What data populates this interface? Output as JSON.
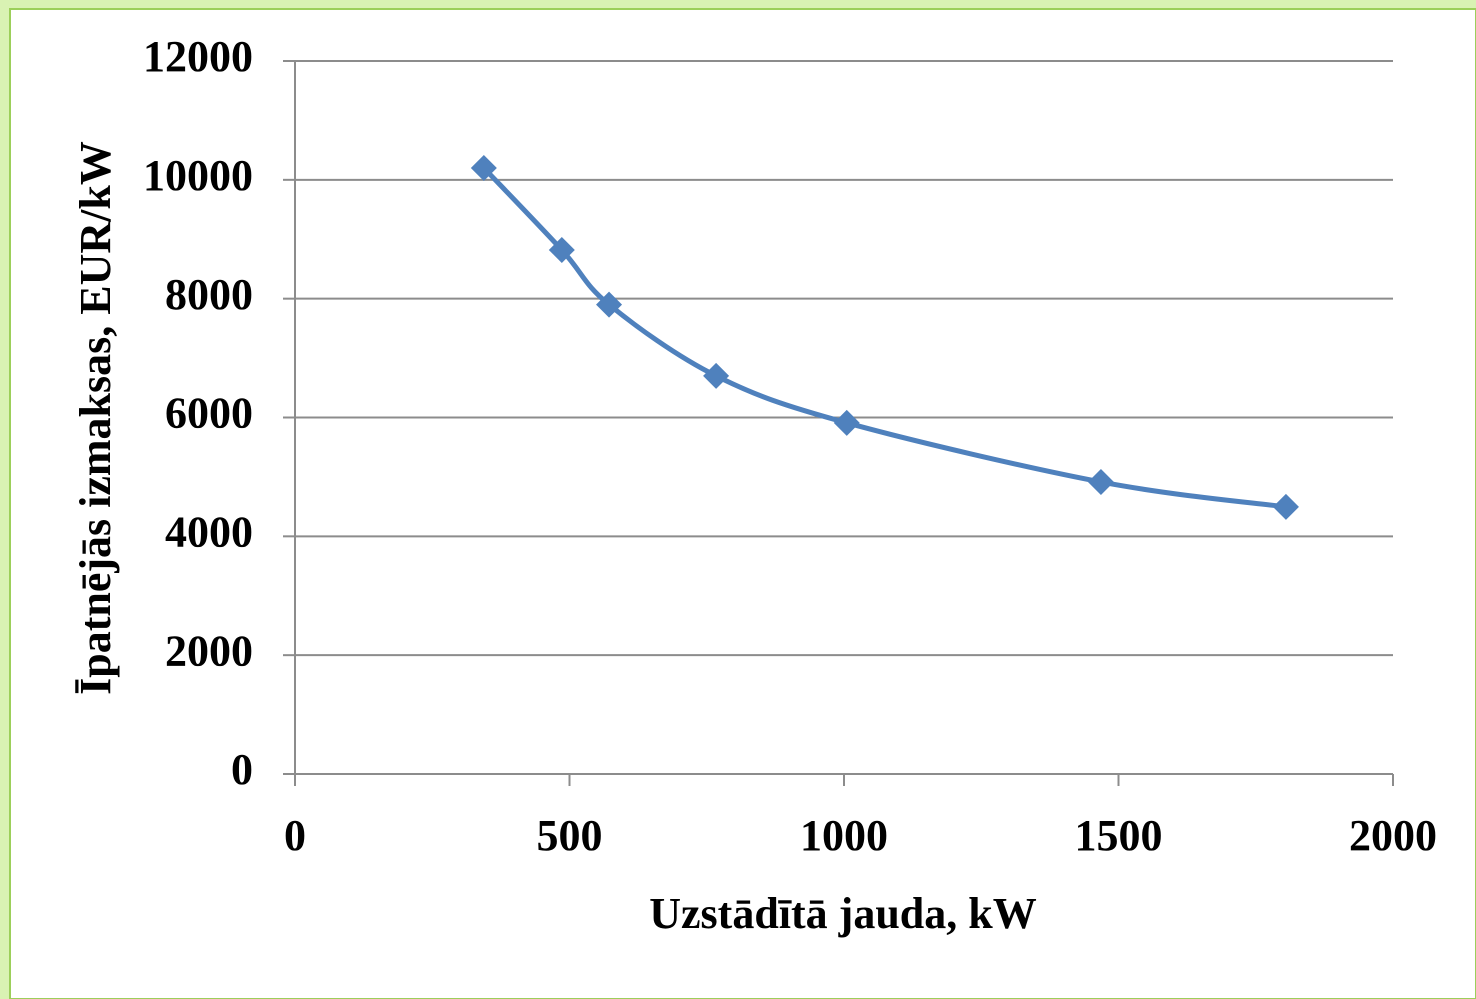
{
  "chart_data": {
    "type": "scatter",
    "xlabel": "Uzstādītā jauda, kW",
    "ylabel": "Īpatnējās izmaksas, EUR/kW",
    "series": [
      {
        "color": "#4f81bd",
        "x": [
          344,
          486,
          572,
          767,
          1005,
          1468,
          1805
        ],
        "values": [
          10200,
          8820,
          7900,
          6700,
          5910,
          4915,
          4495
        ]
      }
    ],
    "xlim": [
      0,
      2000
    ],
    "xticks": [
      0,
      500,
      1000,
      1500,
      2000
    ],
    "ylim": [
      0,
      12000
    ],
    "yticks": [
      0,
      2000,
      4000,
      6000,
      8000,
      10000,
      12000
    ],
    "grid": true,
    "smooth": true
  }
}
